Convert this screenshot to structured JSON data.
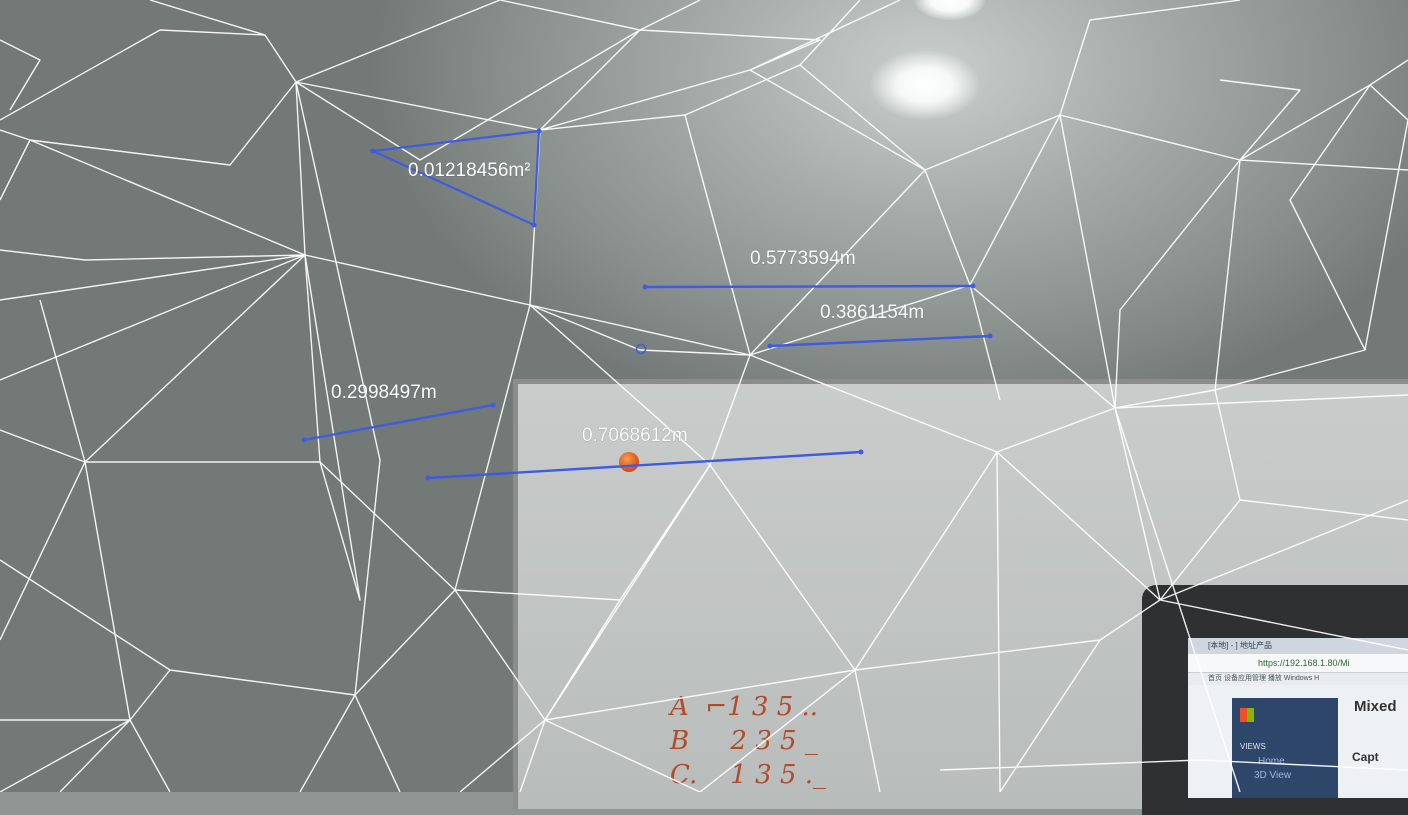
{
  "scene": {
    "measurements": [
      {
        "label": "0.01218456m²",
        "kind": "area"
      },
      {
        "label": "0.5773594m",
        "kind": "length"
      },
      {
        "label": "0.3861154m",
        "kind": "length"
      },
      {
        "label": "0.2998497m",
        "kind": "length"
      },
      {
        "label": "0.7068612m",
        "kind": "length"
      }
    ],
    "whiteboard_text": [
      "A  ⌐1 3 5 ..",
      "B     2 3 5 _",
      "C.    1 3 5 ._"
    ],
    "monitor_screen": {
      "tab_text": "[本地] - ] 地址产品",
      "url": "https://192.168.1.80/Mi",
      "bookmarks_text": "首页  设备应用管理  播放  Windows H",
      "views_label": "VIEWS",
      "home_label": "Home",
      "view3d_label": "3D View",
      "title": "Mixed",
      "capture_label": "Capt"
    },
    "colors": {
      "measure_line": "#3f5be0",
      "mesh_line": "#ffffff",
      "whiteboard_ink": "#b24a2c"
    }
  }
}
